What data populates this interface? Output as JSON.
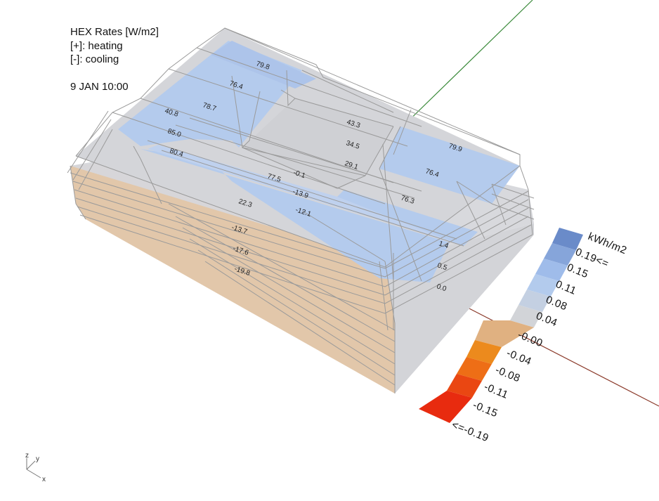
{
  "overlay": {
    "title": "HEX Rates [W/m2]",
    "heating": "[+]: heating",
    "cooling": "[-]: cooling",
    "datetime": "9 JAN 10:00"
  },
  "surface_labels": [
    "79.8",
    "76.4",
    "78.7",
    "40.8",
    "85.0",
    "80.4",
    "43.3",
    "34.5",
    "29.1",
    "79.9",
    "76.4",
    "-0.1",
    "77.5",
    "-13.9",
    "22.3",
    "-12.1",
    "76.3",
    "-13.7",
    "-17.6",
    "-19.8",
    "1.4",
    "0.5",
    "0.0"
  ],
  "legend": {
    "unit": "kWh/m2",
    "labels": [
      "0.19<=",
      "0.15",
      "0.11",
      "0.08",
      "0.04",
      "-0.00",
      "-0.04",
      "-0.08",
      "-0.11",
      "-0.15",
      "<=-0.19"
    ],
    "colors": [
      "#6a8bc9",
      "#86a5da",
      "#9fbcea",
      "#b3cbed",
      "#c4d0e2",
      "#d2d4d8",
      "#e0b181",
      "#ec8a1d",
      "#ee6e16",
      "#ea4712",
      "#e82b0f"
    ]
  },
  "axis_indicator": {
    "z": "z",
    "y": "y",
    "x": "x"
  },
  "colors": {
    "roof_blue": "#b4cbed",
    "grey_face": "#d4d5d9",
    "cooling_face": "#e2c7aa",
    "wire": "#9a9a9a",
    "north_axis": "#3a8a3a",
    "east_axis": "#8b3a2a"
  }
}
